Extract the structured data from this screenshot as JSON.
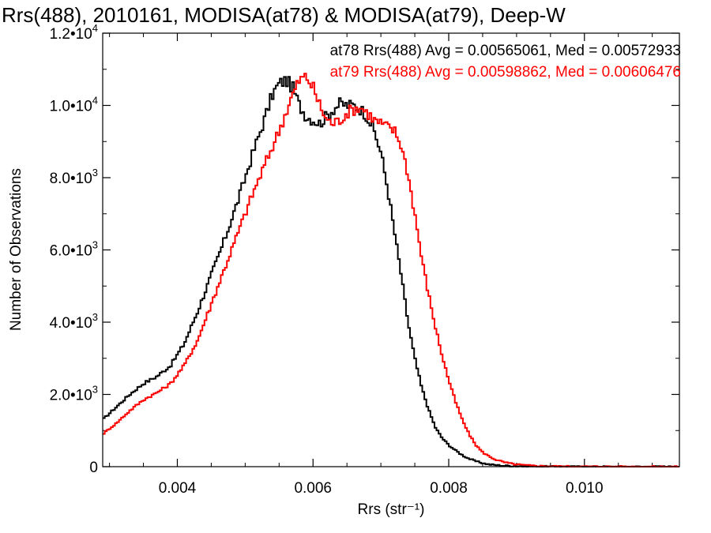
{
  "chart_data": {
    "type": "line",
    "title": "Rrs(488), 2010161, MODISA(at78) & MODISA(at79), Deep-W",
    "xlabel": "Rrs (str⁻¹)",
    "ylabel": "Number of Observations",
    "xlim": [
      0.0029,
      0.0114
    ],
    "ylim": [
      0,
      12000
    ],
    "x_ticks": [
      {
        "value": 0.004,
        "label": "0.004"
      },
      {
        "value": 0.006,
        "label": "0.006"
      },
      {
        "value": 0.008,
        "label": "0.008"
      },
      {
        "value": 0.01,
        "label": "0.010"
      }
    ],
    "y_ticks": [
      {
        "value": 0,
        "mant": "0",
        "exp": ""
      },
      {
        "value": 2000,
        "mant": "2.0•10",
        "exp": "3"
      },
      {
        "value": 4000,
        "mant": "4.0•10",
        "exp": "3"
      },
      {
        "value": 6000,
        "mant": "6.0•10",
        "exp": "3"
      },
      {
        "value": 8000,
        "mant": "8.0•10",
        "exp": "3"
      },
      {
        "value": 10000,
        "mant": "1.0•10",
        "exp": "4"
      },
      {
        "value": 12000,
        "mant": "1.2•10",
        "exp": "4"
      }
    ],
    "annotations": [
      {
        "text": "at78 Rrs(488) Avg = 0.00565061, Med = 0.00572933",
        "color": "#000000"
      },
      {
        "text": "at79 Rrs(488) Avg = 0.00598862, Med = 0.00606476",
        "color": "#ff0000"
      }
    ],
    "series": [
      {
        "color": "#000000",
        "x": [
          0.0029,
          0.0031,
          0.0033,
          0.0035,
          0.0037,
          0.0039,
          0.0041,
          0.0043,
          0.0045,
          0.0047,
          0.0049,
          0.0051,
          0.0053,
          0.0054,
          0.0055,
          0.0056,
          0.0057,
          0.0058,
          0.0059,
          0.006,
          0.0061,
          0.0062,
          0.0063,
          0.0064,
          0.0065,
          0.0066,
          0.0067,
          0.0068,
          0.0069,
          0.007,
          0.0071,
          0.0072,
          0.0073,
          0.0074,
          0.0075,
          0.0076,
          0.0077,
          0.0078,
          0.0079,
          0.008,
          0.0081,
          0.0082,
          0.0083,
          0.0084,
          0.0085,
          0.0086,
          0.0088,
          0.009,
          0.0092,
          0.0095,
          0.01,
          0.0105,
          0.0114
        ],
        "y": [
          1300,
          1650,
          2000,
          2300,
          2500,
          2800,
          3400,
          4300,
          5300,
          6300,
          7400,
          8600,
          9700,
          10300,
          10600,
          10700,
          10500,
          10000,
          9700,
          9600,
          9500,
          9700,
          9900,
          10050,
          10000,
          10000,
          9900,
          9700,
          9300,
          8700,
          7700,
          6500,
          5300,
          4000,
          3000,
          2200,
          1600,
          1100,
          800,
          600,
          450,
          320,
          220,
          150,
          100,
          60,
          30,
          15,
          8,
          4,
          1,
          0,
          0
        ]
      },
      {
        "color": "#ff0000",
        "x": [
          0.0029,
          0.0031,
          0.0033,
          0.0035,
          0.0037,
          0.0039,
          0.0041,
          0.0043,
          0.0045,
          0.0047,
          0.0049,
          0.0051,
          0.0053,
          0.0055,
          0.0056,
          0.0057,
          0.0058,
          0.0059,
          0.006,
          0.0061,
          0.0062,
          0.0063,
          0.0064,
          0.0065,
          0.0066,
          0.0067,
          0.0068,
          0.0069,
          0.007,
          0.0071,
          0.0072,
          0.0073,
          0.0074,
          0.0075,
          0.0076,
          0.0077,
          0.0078,
          0.0079,
          0.008,
          0.0081,
          0.0082,
          0.0083,
          0.0084,
          0.0085,
          0.0086,
          0.0087,
          0.0088,
          0.0089,
          0.009,
          0.0092,
          0.0095,
          0.01,
          0.0105,
          0.0114
        ],
        "y": [
          900,
          1200,
          1550,
          1850,
          2050,
          2300,
          2800,
          3500,
          4500,
          5500,
          6500,
          7500,
          8400,
          9300,
          9800,
          10300,
          10700,
          10800,
          10500,
          10000,
          9600,
          9500,
          9600,
          9800,
          9900,
          9950,
          9800,
          9600,
          9500,
          9400,
          9300,
          8900,
          8100,
          7000,
          5800,
          4800,
          3900,
          3100,
          2400,
          1800,
          1300,
          900,
          600,
          400,
          280,
          190,
          130,
          90,
          60,
          30,
          12,
          4,
          1,
          0
        ]
      }
    ]
  }
}
